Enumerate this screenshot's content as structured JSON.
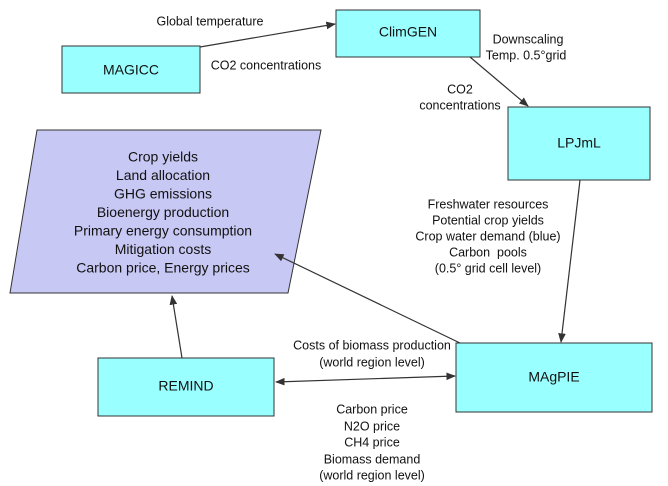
{
  "nodes": [
    {
      "label": "MAGICC"
    },
    {
      "label": "ClimGEN"
    },
    {
      "label": "LPJmL"
    },
    {
      "label": "MAgPIE"
    },
    {
      "label": "REMIND"
    }
  ],
  "outputs": [
    "Crop yields",
    "Land allocation",
    "GHG emissions",
    "Bioenergy production",
    "Primary energy consumption",
    "Mitigation costs",
    "Carbon price, Energy prices"
  ],
  "edges": [
    {
      "lines": [
        "Global temperature"
      ]
    },
    {
      "lines": [
        "CO2 concentrations"
      ]
    },
    {
      "lines": [
        "Downscaling",
        "Temp. 0.5°grid"
      ]
    },
    {
      "lines": [
        "CO2",
        "concentrations"
      ]
    },
    {
      "lines": [
        "Freshwater resources",
        "Potential crop yields",
        "Crop water demand (blue)",
        "Carbon  pools",
        "(0.5° grid cell level)"
      ]
    },
    {
      "lines": [
        "Costs of biomass production",
        "(world region level)"
      ]
    },
    {
      "lines": [
        "Carbon price",
        "N2O price",
        "CH4 price",
        "Biomass demand",
        "(world region level)"
      ]
    }
  ]
}
